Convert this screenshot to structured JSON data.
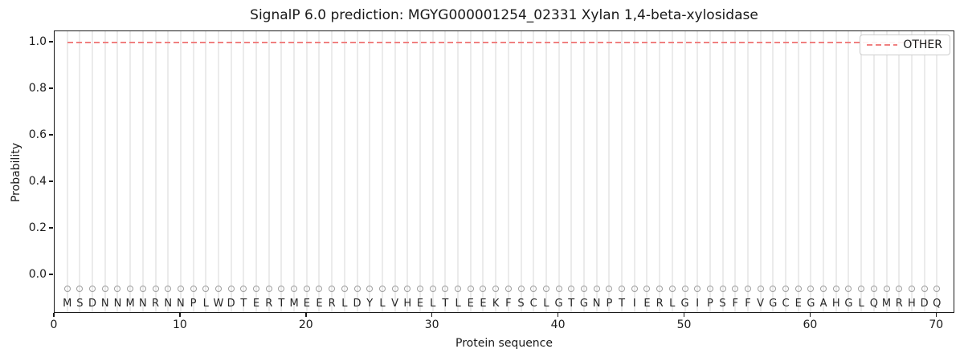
{
  "title": "SignalP 6.0 prediction: MGYG000001254_02331 Xylan 1,4-beta-xylosidase",
  "x_axis": {
    "label": "Protein sequence",
    "ticks": [
      "0",
      "10",
      "20",
      "30",
      "40",
      "50",
      "60",
      "70"
    ]
  },
  "y_axis": {
    "label": "Probability",
    "ticks": [
      "0.0",
      "0.2",
      "0.4",
      "0.6",
      "0.8",
      "1.0"
    ]
  },
  "legend": {
    "items": [
      {
        "label": "OTHER",
        "color": "#f08080",
        "style": "dashed"
      }
    ]
  },
  "sequence": "MSDNNMNRNNPLWDTERTMEERLDYLVHELTLEEKFSCLGTGNPTIERLGIPSFFVGCEGAHGLQMRHDQ",
  "colors": {
    "other_line": "#f08080",
    "grid": "#ebebeb",
    "marker": "#9e9e9e",
    "letter": "#262626",
    "spine": "#1a1a1a",
    "legend_border": "#cccccc",
    "background": "#ffffff"
  },
  "chart_data": {
    "type": "line",
    "title": "SignalP 6.0 prediction: MGYG000001254_02331 Xylan 1,4-beta-xylosidase",
    "xlabel": "Protein sequence",
    "ylabel": "Probability",
    "xlim": [
      0,
      71.5
    ],
    "ylim": [
      -0.16,
      1.05
    ],
    "x_ticks": [
      0,
      10,
      20,
      30,
      40,
      50,
      60,
      70
    ],
    "y_ticks": [
      0.0,
      0.2,
      0.4,
      0.6,
      0.8,
      1.0
    ],
    "grid": "light vertical gridline at each residue position 1-70",
    "legend_position": "upper right",
    "series": [
      {
        "name": "OTHER",
        "color": "#f08080",
        "style": "dashed",
        "x": [
          1,
          2,
          3,
          4,
          5,
          6,
          7,
          8,
          9,
          10,
          11,
          12,
          13,
          14,
          15,
          16,
          17,
          18,
          19,
          20,
          21,
          22,
          23,
          24,
          25,
          26,
          27,
          28,
          29,
          30,
          31,
          32,
          33,
          34,
          35,
          36,
          37,
          38,
          39,
          40,
          41,
          42,
          43,
          44,
          45,
          46,
          47,
          48,
          49,
          50,
          51,
          52,
          53,
          54,
          55,
          56,
          57,
          58,
          59,
          60,
          61,
          62,
          63,
          64,
          65,
          66,
          67,
          68,
          69,
          70
        ],
        "values": [
          1.0,
          1.0,
          1.0,
          1.0,
          1.0,
          1.0,
          1.0,
          1.0,
          1.0,
          1.0,
          1.0,
          1.0,
          1.0,
          1.0,
          1.0,
          1.0,
          1.0,
          1.0,
          1.0,
          1.0,
          1.0,
          1.0,
          1.0,
          1.0,
          1.0,
          1.0,
          1.0,
          1.0,
          1.0,
          1.0,
          1.0,
          1.0,
          1.0,
          1.0,
          1.0,
          1.0,
          1.0,
          1.0,
          1.0,
          1.0,
          1.0,
          1.0,
          1.0,
          1.0,
          1.0,
          1.0,
          1.0,
          1.0,
          1.0,
          1.0,
          1.0,
          1.0,
          1.0,
          1.0,
          1.0,
          1.0,
          1.0,
          1.0,
          1.0,
          1.0,
          1.0,
          1.0,
          1.0,
          1.0,
          1.0,
          1.0,
          1.0,
          1.0,
          1.0,
          1.0
        ]
      }
    ],
    "sequence": "MSDNNMNRNNPLWDTERTMEERLDYLVHELTLEEKFSCLGTGNPTIERLGIPSFFVGCEGAHGLQMRHDQ",
    "sequence_markers": {
      "symbol": "open-circle",
      "y": -0.05
    },
    "sequence_letters_y": -0.11
  }
}
